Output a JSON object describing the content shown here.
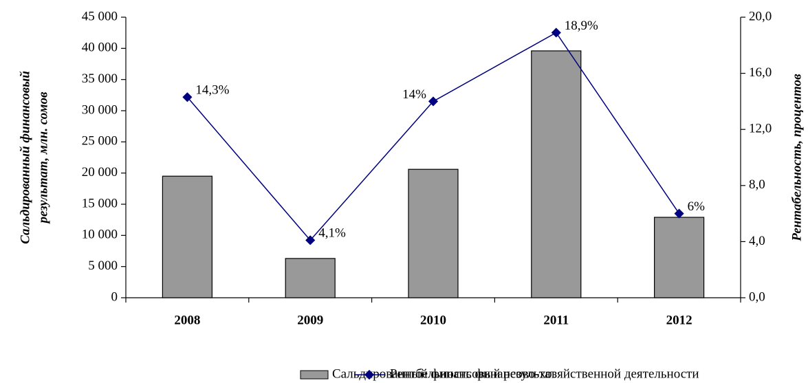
{
  "chart_data": {
    "type": "bar_line",
    "categories": [
      "2008",
      "2009",
      "2010",
      "2011",
      "2012"
    ],
    "series": [
      {
        "name": "Сальдированный финансовый результат",
        "type": "bar",
        "color": "#999999",
        "values": [
          19500,
          6300,
          20600,
          39600,
          12900
        ]
      },
      {
        "name": "Рентбельность финансово-хозяйственной деятельности",
        "type": "line",
        "color": "#000080",
        "axis": "y2",
        "values": [
          14.3,
          4.1,
          14,
          18.9,
          6
        ],
        "value_labels": [
          "14,3%",
          "4,1%",
          "14%",
          "18,9%",
          "6%"
        ]
      }
    ],
    "ylabel": [
      "Сальдированный финансовый",
      "результат, млн. сомов"
    ],
    "y2label": "Рентабельность, процентов",
    "ylim": [
      0,
      45000
    ],
    "yticks": [
      0,
      {
        "value": 5000,
        "label": "5 000"
      },
      {
        "value": 10000,
        "label": "10 000"
      },
      {
        "value": 15000,
        "label": "15 000"
      },
      {
        "value": 20000,
        "label": "20 000"
      },
      {
        "value": 25000,
        "label": "25 000"
      },
      {
        "value": 30000,
        "label": "30 000"
      },
      {
        "value": 35000,
        "label": "35 000"
      },
      {
        "value": 40000,
        "label": "40 000"
      },
      {
        "value": 45000,
        "label": "45 000"
      }
    ],
    "y2lim": [
      0,
      20
    ],
    "y2ticks": [
      {
        "value": 0,
        "label": "0,0"
      },
      {
        "value": 4,
        "label": "4,0"
      },
      {
        "value": 8,
        "label": "8,0"
      },
      {
        "value": 12,
        "label": "12,0"
      },
      {
        "value": 16,
        "label": "16,0"
      },
      {
        "value": 20,
        "label": "20,0"
      }
    ],
    "legend": "bottom"
  }
}
